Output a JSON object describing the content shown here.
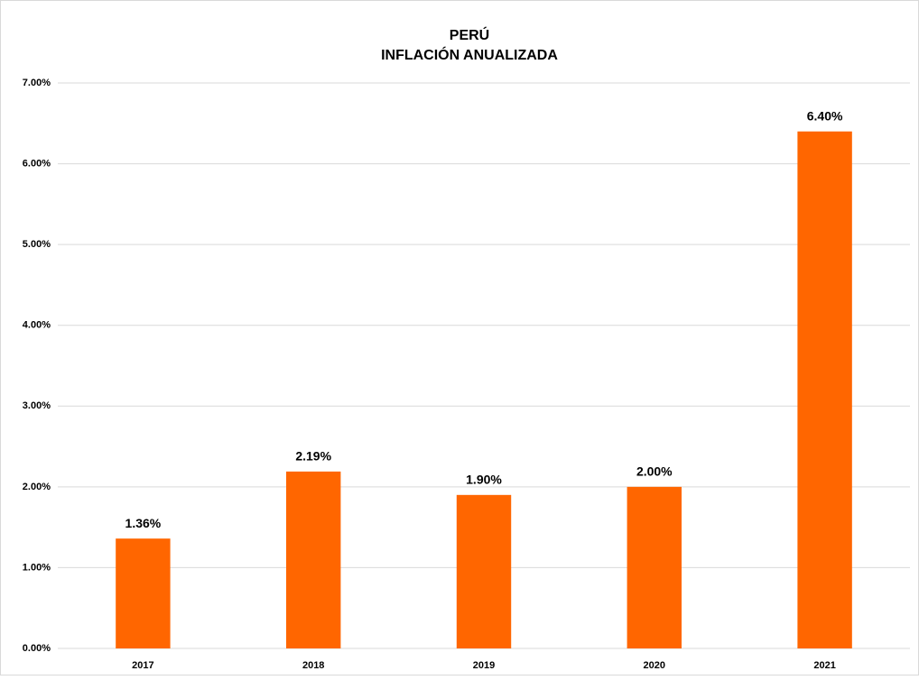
{
  "chart_data": {
    "type": "bar",
    "title": [
      "PERÚ",
      "INFLACIÓN ANUALIZADA"
    ],
    "categories": [
      "2017",
      "2018",
      "2019",
      "2020",
      "2021"
    ],
    "values": [
      1.36,
      2.19,
      1.9,
      2.0,
      6.4
    ],
    "value_labels": [
      "1.36%",
      "2.19%",
      "1.90%",
      "2.00%",
      "6.40%"
    ],
    "color": "#ff6600",
    "ylim": [
      0,
      7
    ],
    "yticks": [
      {
        "value": 0,
        "label": "0.00%"
      },
      {
        "value": 1,
        "label": "1.00%"
      },
      {
        "value": 2,
        "label": "2.00%"
      },
      {
        "value": 3,
        "label": "3.00%"
      },
      {
        "value": 4,
        "label": "4.00%"
      },
      {
        "value": 5,
        "label": "5.00%"
      },
      {
        "value": 6,
        "label": "6.00%"
      },
      {
        "value": 7,
        "label": "7.00%"
      }
    ],
    "grid": true
  }
}
